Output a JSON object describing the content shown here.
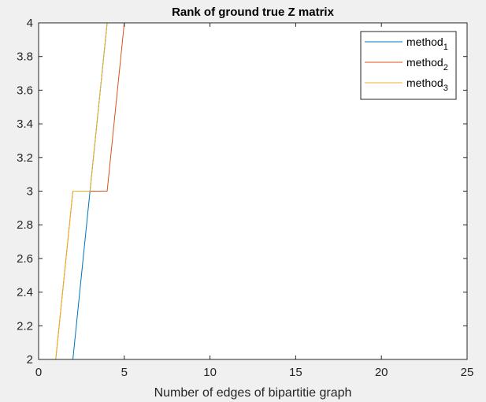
{
  "figure": {
    "background": "#f0f0f0",
    "axes_background": "#ffffff",
    "axis_color": "#262626"
  },
  "chart_data": {
    "type": "line",
    "title": "Rank of ground true Z matrix",
    "xlabel": "Number of edges of bipartitie graph",
    "ylabel": "",
    "xlim": [
      0,
      25
    ],
    "ylim": [
      2,
      4
    ],
    "xticks": [
      0,
      5,
      10,
      15,
      20,
      25
    ],
    "xtick_labels": [
      "0",
      "5",
      "10",
      "15",
      "20",
      "25"
    ],
    "yticks": [
      2,
      2.2,
      2.4,
      2.6,
      2.8,
      3,
      3.2,
      3.4,
      3.6,
      3.8,
      4
    ],
    "ytick_labels": [
      "2",
      "2.2",
      "2.4",
      "2.6",
      "2.8",
      "3",
      "3.2",
      "3.4",
      "3.6",
      "3.8",
      "4"
    ],
    "grid": false,
    "legend_position": "top-right",
    "series": [
      {
        "name": "method",
        "subscript": "1",
        "color": "#0072bd",
        "x": [
          1,
          2,
          3,
          4,
          5,
          6,
          7,
          8,
          9,
          10,
          11,
          12,
          13,
          14,
          15,
          16,
          17,
          18,
          19,
          20,
          21
        ],
        "y": [
          2,
          2,
          3,
          4,
          4,
          4,
          4,
          4,
          4,
          4,
          4,
          4,
          4,
          4,
          4,
          4,
          4,
          4,
          4,
          4,
          4
        ]
      },
      {
        "name": "method",
        "subscript": "2",
        "color": "#d95319",
        "x": [
          1,
          2,
          3,
          4,
          5,
          6,
          7,
          8,
          9,
          10,
          11,
          12,
          13,
          14,
          15,
          16,
          17,
          18,
          19,
          20,
          21
        ],
        "y": [
          2,
          3,
          3,
          3,
          4,
          4,
          4,
          4,
          4,
          4,
          4,
          4,
          4,
          4,
          4,
          4,
          4,
          4,
          4,
          4,
          4
        ]
      },
      {
        "name": "method",
        "subscript": "3",
        "color": "#edb120",
        "x": [
          1,
          2,
          3,
          4,
          5,
          6,
          7,
          8,
          9,
          10,
          11,
          12,
          13,
          14,
          15,
          16,
          17,
          18,
          19,
          20,
          21
        ],
        "y": [
          2,
          3,
          3,
          4,
          4,
          4,
          4,
          4,
          4,
          4,
          4,
          4,
          4,
          4,
          4,
          4,
          4,
          4,
          4,
          4,
          4
        ]
      }
    ]
  }
}
